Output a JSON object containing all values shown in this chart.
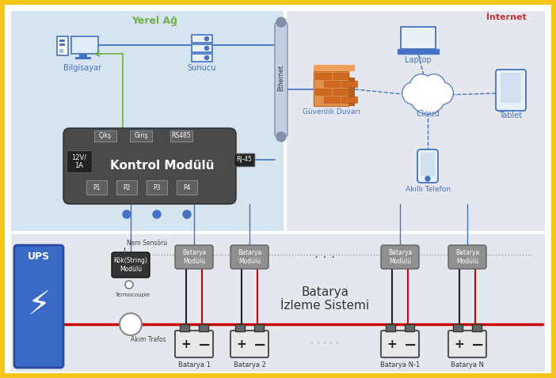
{
  "yellow_border": "#F5C518",
  "bg_local_network": "#D6E4F0",
  "bg_internet": "#E4E8EE",
  "bg_battery_area": "#E4E8EE",
  "white": "#FFFFFF",
  "blue_color": "#4472C4",
  "green_color": "#70AD47",
  "dark_gray": "#4A4A4A",
  "mid_gray": "#909090",
  "red_color": "#CC0000",
  "orange_color": "#D07030",
  "text_blue": "#4472C4",
  "text_green": "#70AD47",
  "text_red": "#CC3333",
  "text_dark": "#333333",
  "title_local": "Yerel Ağ",
  "title_internet": "İnternet",
  "label_bilgisayar": "Bilgisayar",
  "label_sunucu": "Sunucu",
  "label_kontrol": "Kontrol Modülü",
  "label_laptop": "Laptop",
  "label_tablet": "Tablet",
  "label_cloud": "Cloud",
  "label_guvenlik": "Güvenlik Duvarı",
  "label_akilli": "Akıllı Telefon",
  "label_ethernet": "Ethernet",
  "label_ups": "UPS",
  "label_batarya_izleme": "Batarya\nİzleme Sistemi",
  "label_nem": "Nem Sensörü",
  "label_termocouple": "Termocouple",
  "label_akim": "Akım Trafos",
  "label_kok": "Kök(String)\nModülü",
  "label_batarya_modulu": "Batarya\nModülü",
  "label_batarya1": "Batarya 1",
  "label_batarya2": "Batarya 2",
  "label_batarya_n1": "Batarya N-1",
  "label_batarya_n": "Batarya N",
  "label_p1": "P1",
  "label_p2": "P2",
  "label_p3": "P3",
  "label_p4": "P4",
  "label_cikis": "Çıkş",
  "label_giris": "Giriş",
  "label_rs485": "RS485",
  "label_rj45": "RJ-45",
  "label_12v": "12V/\n1A"
}
